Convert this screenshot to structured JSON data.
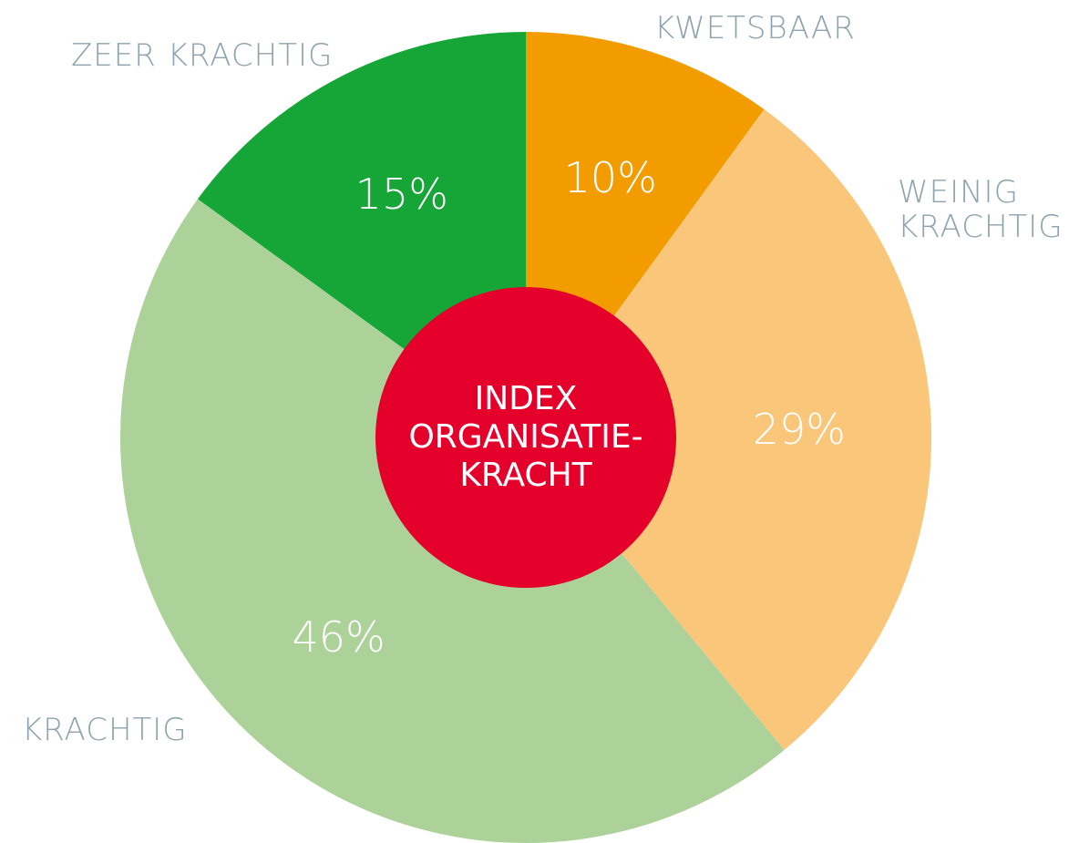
{
  "chart_data": {
    "type": "donut",
    "center_text": [
      "INDEX",
      "ORGANISATIE-",
      "KRACHT"
    ],
    "categories": [
      "KWETSBAAR",
      "WEINIG KRACHTIG",
      "KRACHTIG",
      "ZEER KRACHTIG"
    ],
    "values": [
      10,
      29,
      46,
      15
    ],
    "value_labels": [
      "10%",
      "29%",
      "46%",
      "15%"
    ],
    "colors": [
      "#f39c00",
      "#f9c67a",
      "#acd29a",
      "#16a637"
    ],
    "center_color": "#e4002b"
  }
}
